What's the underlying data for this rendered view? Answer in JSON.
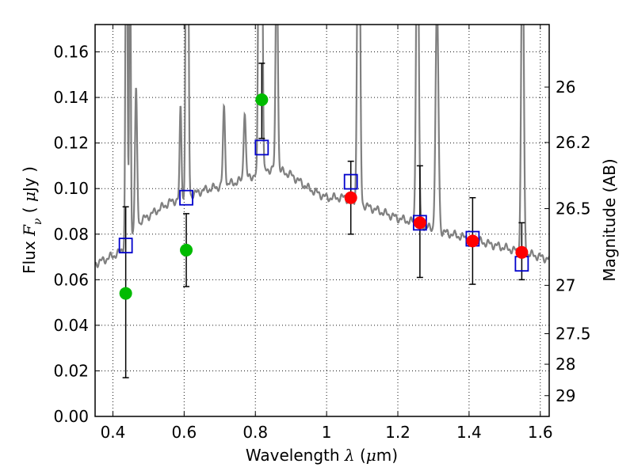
{
  "chart_data": {
    "type": "scatter",
    "title": "",
    "xlabel": {
      "prefix": "Wavelength",
      "symbol": "λ",
      "unit_open": " (",
      "unit_mu": "μ",
      "unit_rest": "m)"
    },
    "ylabel": {
      "prefix": "Flux",
      "symbol": "F",
      "subscript": "ν",
      "unit_open": " ( ",
      "unit_mu": "μ",
      "unit_rest": "Jy )"
    },
    "y2label": "Magnitude (AB)",
    "xlim": [
      0.35,
      1.625
    ],
    "ylim": [
      0.0,
      0.172
    ],
    "xticks": [
      0.4,
      0.6,
      0.8,
      1.0,
      1.2,
      1.4,
      1.6
    ],
    "xtick_labels": [
      "0.4",
      "0.6",
      "0.8",
      "1",
      "1.2",
      "1.4",
      "1.6"
    ],
    "yticks": [
      0.0,
      0.02,
      0.04,
      0.06,
      0.08,
      0.1,
      0.12,
      0.14,
      0.16
    ],
    "ytick_labels": [
      "0.00",
      "0.02",
      "0.04",
      "0.06",
      "0.08",
      "0.10",
      "0.12",
      "0.14",
      "0.16"
    ],
    "y2ticks": [
      {
        "label": "26",
        "mag": 26.0
      },
      {
        "label": "26.2",
        "mag": 26.2
      },
      {
        "label": "26.5",
        "mag": 26.5
      },
      {
        "label": "27",
        "mag": 27.0
      },
      {
        "label": "27.5",
        "mag": 27.5
      },
      {
        "label": "28",
        "mag": 28.0
      },
      {
        "label": "29",
        "mag": 29.0
      }
    ],
    "grid": true,
    "colors": {
      "spectrum": "#808080",
      "green": "#00bb00",
      "red": "#ff0000",
      "model": "#0000cc",
      "errorbar": "#000000"
    },
    "spectrum": {
      "continuum": [
        [
          0.35,
          0.067
        ],
        [
          0.38,
          0.069
        ],
        [
          0.42,
          0.072
        ],
        [
          0.45,
          0.079
        ],
        [
          0.48,
          0.086
        ],
        [
          0.52,
          0.09
        ],
        [
          0.56,
          0.094
        ],
        [
          0.6,
          0.096
        ],
        [
          0.65,
          0.099
        ],
        [
          0.7,
          0.101
        ],
        [
          0.75,
          0.103
        ],
        [
          0.8,
          0.106
        ],
        [
          0.85,
          0.109
        ],
        [
          0.9,
          0.106
        ],
        [
          0.95,
          0.1
        ],
        [
          1.0,
          0.096
        ],
        [
          1.05,
          0.096
        ],
        [
          1.1,
          0.093
        ],
        [
          1.15,
          0.09
        ],
        [
          1.2,
          0.087
        ],
        [
          1.25,
          0.085
        ],
        [
          1.3,
          0.082
        ],
        [
          1.35,
          0.08
        ],
        [
          1.4,
          0.078
        ],
        [
          1.45,
          0.076
        ],
        [
          1.5,
          0.074
        ],
        [
          1.55,
          0.072
        ],
        [
          1.6,
          0.07
        ],
        [
          1.625,
          0.069
        ]
      ],
      "lines": [
        [
          0.438,
          0.2,
          0.0025
        ],
        [
          0.448,
          0.16,
          0.002
        ],
        [
          0.465,
          0.06,
          0.003
        ],
        [
          0.59,
          0.04,
          0.0025
        ],
        [
          0.605,
          0.1,
          0.002
        ],
        [
          0.61,
          0.16,
          0.0025
        ],
        [
          0.712,
          0.034,
          0.003
        ],
        [
          0.77,
          0.03,
          0.003
        ],
        [
          0.81,
          0.12,
          0.0025
        ],
        [
          0.818,
          0.14,
          0.0025
        ],
        [
          0.86,
          0.1,
          0.003
        ],
        [
          1.09,
          0.2,
          0.0035
        ],
        [
          1.255,
          0.16,
          0.0035
        ],
        [
          1.31,
          0.1,
          0.004
        ],
        [
          1.55,
          0.15,
          0.0035
        ]
      ]
    },
    "series": [
      {
        "name": "green",
        "marker": "circle",
        "x": [
          0.436,
          0.606,
          0.818
        ],
        "y": [
          0.054,
          0.073,
          0.139
        ],
        "yerr_low": [
          0.017,
          0.057,
          0.122
        ],
        "yerr_high": [
          0.092,
          0.089,
          0.155
        ]
      },
      {
        "name": "red",
        "marker": "circle",
        "x": [
          1.068,
          1.262,
          1.41,
          1.548
        ],
        "y": [
          0.096,
          0.085,
          0.077,
          0.072
        ],
        "yerr_low": [
          0.08,
          0.061,
          0.058,
          0.06
        ],
        "yerr_high": [
          0.112,
          0.11,
          0.096,
          0.085
        ]
      },
      {
        "name": "model",
        "marker": "square",
        "x": [
          0.436,
          0.606,
          0.818,
          1.068,
          1.262,
          1.41,
          1.548
        ],
        "y": [
          0.075,
          0.096,
          0.118,
          0.103,
          0.085,
          0.078,
          0.067
        ]
      }
    ]
  }
}
